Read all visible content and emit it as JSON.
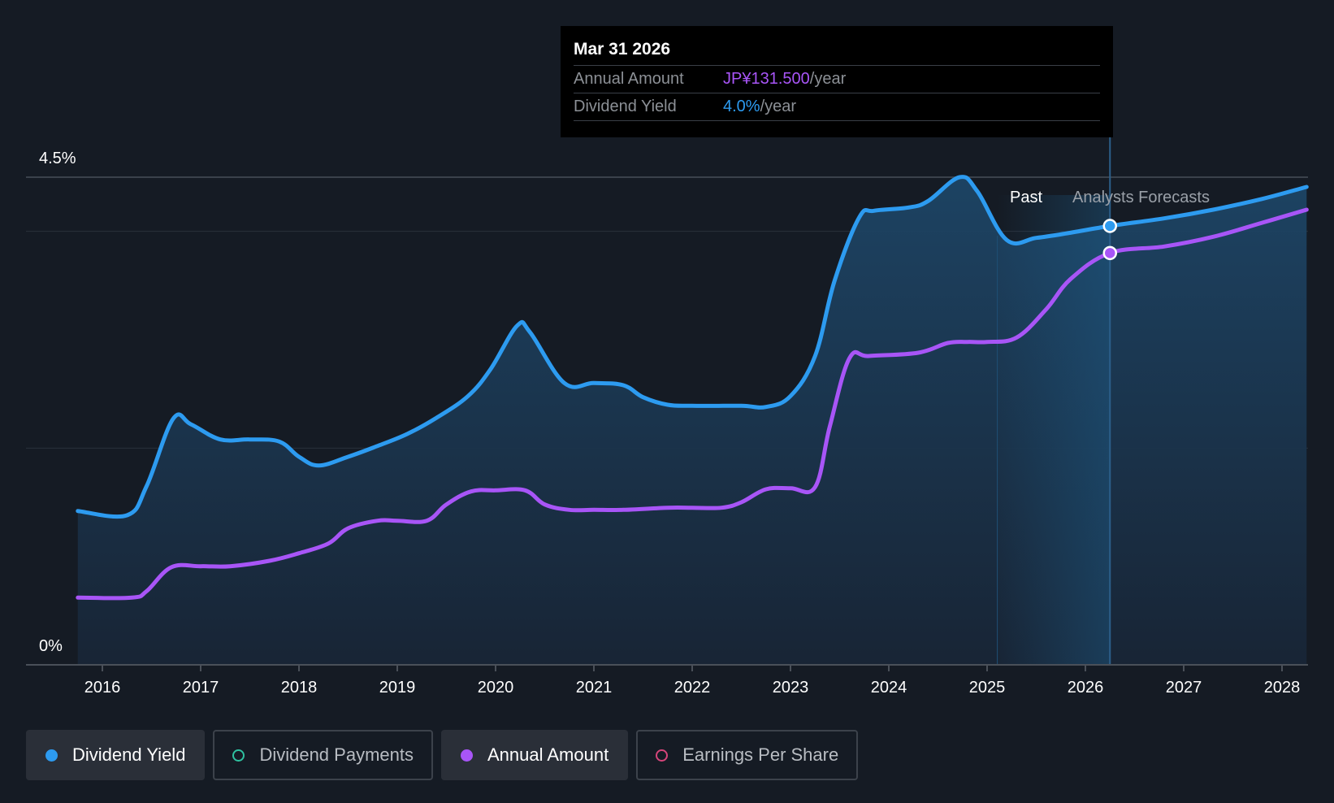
{
  "colors": {
    "background": "#151b24",
    "yield": "#2d9bf0",
    "amount": "#a855f7",
    "payments": "#2fc1a0",
    "eps": "#d6457a"
  },
  "tooltip": {
    "date": "Mar 31 2026",
    "annual_label": "Annual Amount",
    "annual_value": "JP¥131.500",
    "annual_unit": "/year",
    "yield_label": "Dividend Yield",
    "yield_value": "4.0%",
    "yield_unit": "/year"
  },
  "legend": [
    {
      "label": "Dividend Yield",
      "active": true,
      "color": "#2d9bf0",
      "icon": "filled-dot-icon"
    },
    {
      "label": "Dividend Payments",
      "active": false,
      "color": "#2fc1a0",
      "icon": "hollow-dot-icon"
    },
    {
      "label": "Annual Amount",
      "active": true,
      "color": "#a855f7",
      "icon": "filled-dot-icon"
    },
    {
      "label": "Earnings Per Share",
      "active": false,
      "color": "#d6457a",
      "icon": "hollow-dot-icon"
    }
  ],
  "chart_data": {
    "type": "line",
    "y_tick_labels": [
      "4.5%",
      "0%"
    ],
    "ylim": [
      0,
      4.5
    ],
    "xlim": [
      2015.75,
      2028.25
    ],
    "x_ticks": [
      2016,
      2017,
      2018,
      2019,
      2020,
      2021,
      2022,
      2023,
      2024,
      2025,
      2026,
      2027,
      2028
    ],
    "x_tick_labels": [
      "2016",
      "2017",
      "2018",
      "2019",
      "2020",
      "2021",
      "2022",
      "2023",
      "2024",
      "2025",
      "2026",
      "2027",
      "2028"
    ],
    "past_label": "Past",
    "forecast_label": "Analysts Forecasts",
    "forecast_start": 2025.6,
    "highlight_x": 2026.25,
    "series": [
      {
        "name": "Dividend Yield",
        "unit": "%",
        "x": [
          2015.75,
          2016.25,
          2016.45,
          2016.72,
          2016.9,
          2017.2,
          2017.5,
          2017.8,
          2018.0,
          2018.2,
          2018.5,
          2018.8,
          2019.1,
          2019.4,
          2019.72,
          2019.95,
          2020.22,
          2020.35,
          2020.7,
          2021.0,
          2021.3,
          2021.5,
          2021.75,
          2022.0,
          2022.5,
          2022.75,
          2023.0,
          2023.25,
          2023.45,
          2023.7,
          2023.85,
          2024.2,
          2024.4,
          2024.72,
          2024.9,
          2025.2,
          2025.5,
          2025.8,
          2026.25,
          2026.8,
          2027.3,
          2027.8,
          2028.25
        ],
        "values": [
          1.42,
          1.38,
          1.65,
          2.27,
          2.22,
          2.08,
          2.08,
          2.06,
          1.92,
          1.84,
          1.92,
          2.02,
          2.13,
          2.28,
          2.48,
          2.73,
          3.13,
          3.07,
          2.6,
          2.6,
          2.58,
          2.47,
          2.4,
          2.39,
          2.39,
          2.38,
          2.48,
          2.85,
          3.55,
          4.13,
          4.19,
          4.22,
          4.28,
          4.5,
          4.37,
          3.92,
          3.94,
          3.98,
          4.05,
          4.12,
          4.2,
          4.3,
          4.41
        ]
      },
      {
        "name": "Annual Amount",
        "unit": "JP¥",
        "x": [
          2015.75,
          2016.3,
          2016.45,
          2016.7,
          2017.0,
          2017.3,
          2017.7,
          2018.0,
          2018.3,
          2018.5,
          2018.8,
          2019.0,
          2019.3,
          2019.5,
          2019.75,
          2020.0,
          2020.3,
          2020.5,
          2020.75,
          2021.0,
          2021.3,
          2021.75,
          2022.0,
          2022.3,
          2022.5,
          2022.75,
          2023.0,
          2023.25,
          2023.4,
          2023.6,
          2023.8,
          2024.3,
          2024.6,
          2024.8,
          2025.0,
          2025.3,
          2025.6,
          2025.85,
          2026.25,
          2026.8,
          2027.3,
          2027.8,
          2028.25
        ],
        "values": [
          0.62,
          0.62,
          0.68,
          0.9,
          0.91,
          0.91,
          0.96,
          1.03,
          1.12,
          1.26,
          1.33,
          1.33,
          1.33,
          1.48,
          1.6,
          1.61,
          1.61,
          1.48,
          1.43,
          1.43,
          1.43,
          1.45,
          1.45,
          1.45,
          1.5,
          1.62,
          1.63,
          1.64,
          2.2,
          2.83,
          2.85,
          2.88,
          2.97,
          2.98,
          2.98,
          3.02,
          3.28,
          3.56,
          3.8,
          3.86,
          3.95,
          4.08,
          4.2
        ]
      }
    ]
  }
}
